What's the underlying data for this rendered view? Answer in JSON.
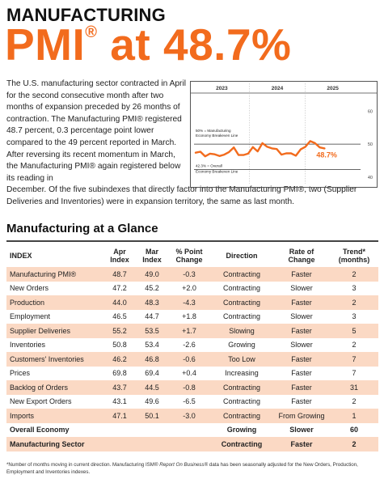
{
  "header": {
    "kicker": "MANUFACTURING",
    "headline_pre": "PMI",
    "headline_sup": "®",
    "headline_post": " at 48.7%"
  },
  "body": {
    "paragraph_col": "The U.S. manufacturing sector contracted in April for the second consecutive month after two months of expansion preceded by 26 months of contraction. The Manufacturing PMI® registered 48.7 percent, 0.3 percentage point lower compared to the 49 percent reported in March. After reversing its recent momentum in March, the Manufacturing PMI® again registered below its reading in",
    "paragraph_wide": "December. Of the five subindexes that directly factor into the Manufacturing PMI®, two (Supplier Deliveries and Inventories) were in expansion territory, the same as last month."
  },
  "chart_data": {
    "type": "line",
    "years": [
      "2023",
      "2024",
      "2025"
    ],
    "yticks": [
      "60",
      "50",
      "40"
    ],
    "ylim": [
      38,
      65
    ],
    "current_label": "48.7%",
    "reference_lines": [
      {
        "value": 50,
        "label": "50% = Manufacturing Economy Breakeven Line"
      },
      {
        "value": 42.3,
        "label": "42.3% = Overall Economy Breakeven Line"
      }
    ],
    "series": [
      {
        "values": [
          47.4,
          47.7,
          46.3,
          47.1,
          46.9,
          46.4,
          46.8,
          47.6,
          49.0,
          46.7,
          46.7,
          47.1,
          49.1,
          47.8,
          50.3,
          49.2,
          48.7,
          48.5,
          46.8,
          47.2,
          47.2,
          46.5,
          48.4,
          49.2,
          50.9,
          50.3,
          49.0,
          48.7
        ]
      }
    ],
    "colors": {
      "line": "#F26B1D",
      "ref": "#333333"
    }
  },
  "glance": {
    "title": "Manufacturing at a Glance",
    "headers": {
      "index": "INDEX",
      "apr": "Apr\nIndex",
      "mar": "Mar\nIndex",
      "pct": "% Point\nChange",
      "direction": "Direction",
      "rate": "Rate of\nChange",
      "trend": "Trend*\n(months)"
    },
    "rows": [
      {
        "index": "Manufacturing PMI®",
        "apr": "48.7",
        "mar": "49.0",
        "pct": "-0.3",
        "direction": "Contracting",
        "rate": "Faster",
        "trend": "2"
      },
      {
        "index": "New Orders",
        "apr": "47.2",
        "mar": "45.2",
        "pct": "+2.0",
        "direction": "Contracting",
        "rate": "Slower",
        "trend": "3"
      },
      {
        "index": "Production",
        "apr": "44.0",
        "mar": "48.3",
        "pct": "-4.3",
        "direction": "Contracting",
        "rate": "Faster",
        "trend": "2"
      },
      {
        "index": "Employment",
        "apr": "46.5",
        "mar": "44.7",
        "pct": "+1.8",
        "direction": "Contracting",
        "rate": "Slower",
        "trend": "3"
      },
      {
        "index": "Supplier Deliveries",
        "apr": "55.2",
        "mar": "53.5",
        "pct": "+1.7",
        "direction": "Slowing",
        "rate": "Faster",
        "trend": "5"
      },
      {
        "index": "Inventories",
        "apr": "50.8",
        "mar": "53.4",
        "pct": "-2.6",
        "direction": "Growing",
        "rate": "Slower",
        "trend": "2"
      },
      {
        "index": "Customers' Inventories",
        "apr": "46.2",
        "mar": "46.8",
        "pct": "-0.6",
        "direction": "Too Low",
        "rate": "Faster",
        "trend": "7"
      },
      {
        "index": "Prices",
        "apr": "69.8",
        "mar": "69.4",
        "pct": "+0.4",
        "direction": "Increasing",
        "rate": "Faster",
        "trend": "7"
      },
      {
        "index": "Backlog of Orders",
        "apr": "43.7",
        "mar": "44.5",
        "pct": "-0.8",
        "direction": "Contracting",
        "rate": "Faster",
        "trend": "31"
      },
      {
        "index": "New Export Orders",
        "apr": "43.1",
        "mar": "49.6",
        "pct": "-6.5",
        "direction": "Contracting",
        "rate": "Faster",
        "trend": "2"
      },
      {
        "index": "Imports",
        "apr": "47.1",
        "mar": "50.1",
        "pct": "-3.0",
        "direction": "Contracting",
        "rate": "From Growing",
        "trend": "1"
      }
    ],
    "overall": {
      "index": "Overall Economy",
      "direction": "Growing",
      "rate": "Slower",
      "trend": "60"
    },
    "sector": {
      "index": "Manufacturing Sector",
      "direction": "Contracting",
      "rate": "Faster",
      "trend": "2"
    },
    "shade_color": "#FBD9C4"
  },
  "footnote": {
    "pre": "*Number of months moving in current direction. Manufacturing ISM® ",
    "italic": "Report On Business®",
    "post": " data has been seasonally adjusted for the New Orders, Production, Employment and Inventories indexes."
  }
}
